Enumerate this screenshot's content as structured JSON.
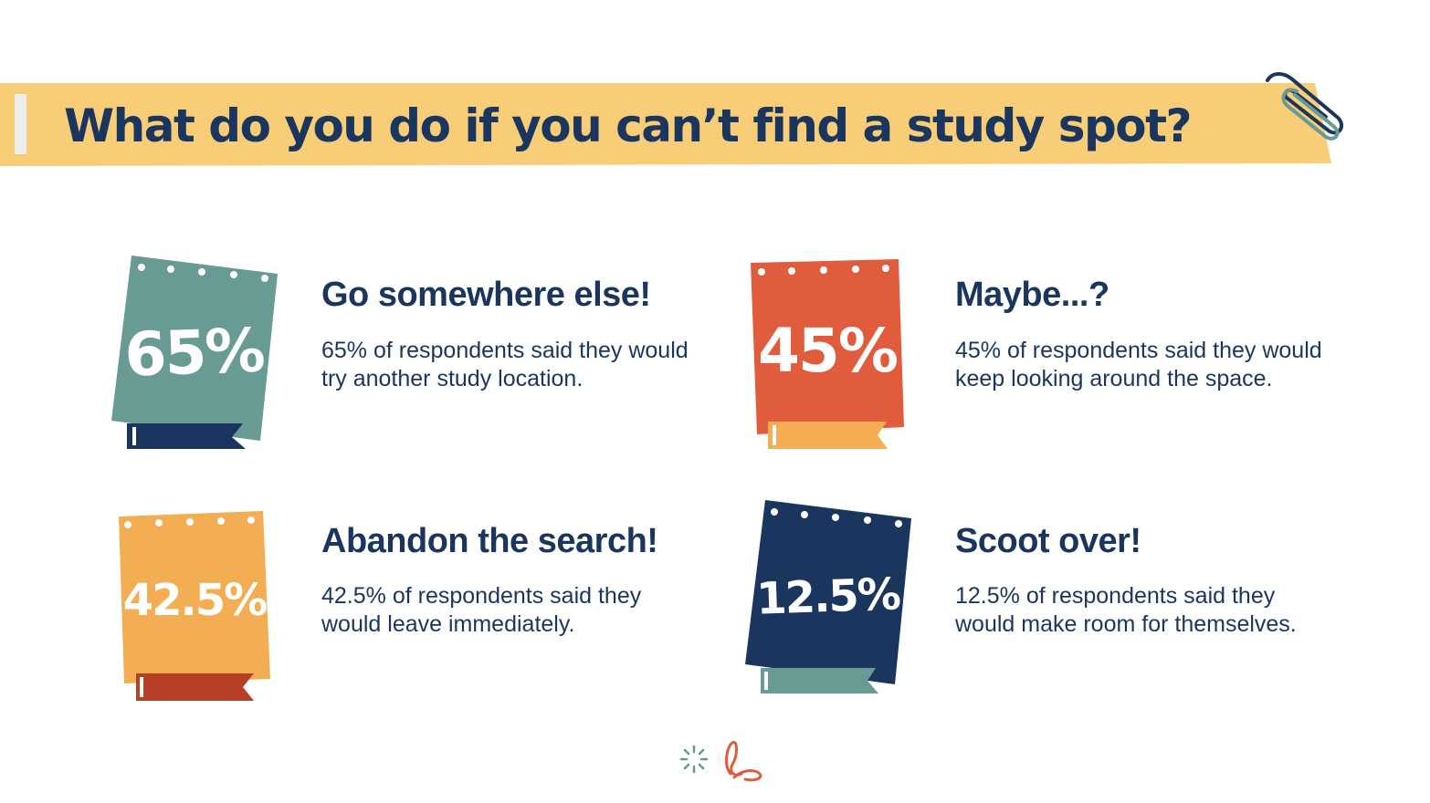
{
  "header": {
    "title": "What do you do if you can’t find a study spot?"
  },
  "items": [
    {
      "percent": "65%",
      "title": "Go somewhere else!",
      "description": "65% of respondents said they would try another study location.",
      "card_color": "#679b93",
      "ribbon_color": "#1a355e"
    },
    {
      "percent": "45%",
      "title": "Maybe...?",
      "description": "45% of respondents said they would keep looking around the space.",
      "card_color": "#e05c3c",
      "ribbon_color": "#f3ae54"
    },
    {
      "percent": "42.5%",
      "title": "Abandon the search!",
      "description": "42.5% of respondents said they would leave immediately.",
      "card_color": "#f3ae54",
      "ribbon_color": "#b63f27"
    },
    {
      "percent": "12.5%",
      "title": "Scoot over!",
      "description": "12.5% of respondents said they would make room for themselves.",
      "card_color": "#1a355e",
      "ribbon_color": "#679b93"
    }
  ],
  "colors": {
    "banner": "#f7cd78",
    "text": "#1a355e"
  },
  "icons": [
    "paperclip-icon",
    "sparkle-doodle-icon",
    "swirl-doodle-icon"
  ]
}
